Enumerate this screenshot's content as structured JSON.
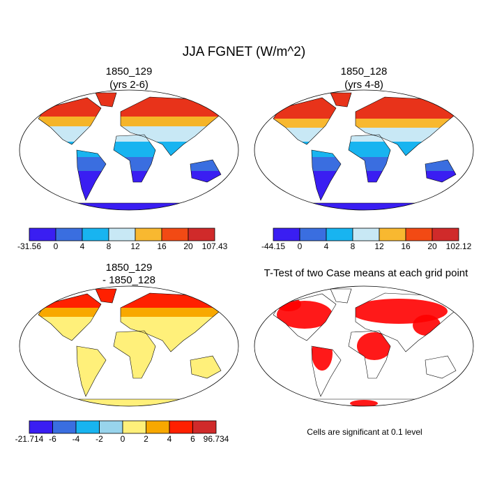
{
  "title": "JJA FGNET (W/m^2)",
  "panels": [
    {
      "title": "1850_129",
      "subtitle": "(yrs 2-6)",
      "colorbar": {
        "colors": [
          "#3a1ef2",
          "#3a6ee0",
          "#18b4f0",
          "#c8e8f5",
          "#f8b830",
          "#f24a14",
          "#d02a2a"
        ],
        "labels": [
          -31.56,
          0,
          4,
          8,
          12,
          16,
          20,
          107.43
        ]
      }
    },
    {
      "title": "1850_128",
      "subtitle": "(yrs 4-8)",
      "colorbar": {
        "colors": [
          "#3a1ef2",
          "#3a6ee0",
          "#18b4f0",
          "#c8e8f5",
          "#f8b830",
          "#f24a14",
          "#d02a2a"
        ],
        "labels": [
          -44.15,
          0,
          4,
          8,
          12,
          16,
          20,
          102.12
        ]
      }
    },
    {
      "title": "1850_129",
      "subtitle": "- 1850_128",
      "colorbar": {
        "colors": [
          "#3a1ef2",
          "#3a6ee0",
          "#18b4f0",
          "#98d4ec",
          "#fff07a",
          "#f8a800",
          "#ff2000",
          "#d02a2a"
        ],
        "labels": [
          -21.714,
          -6,
          -4,
          -2,
          0,
          2,
          4,
          6,
          96.734
        ]
      }
    },
    {
      "title": "T-Test of two Case means at each grid point",
      "note": "Cells are significant at 0.1 level"
    }
  ]
}
